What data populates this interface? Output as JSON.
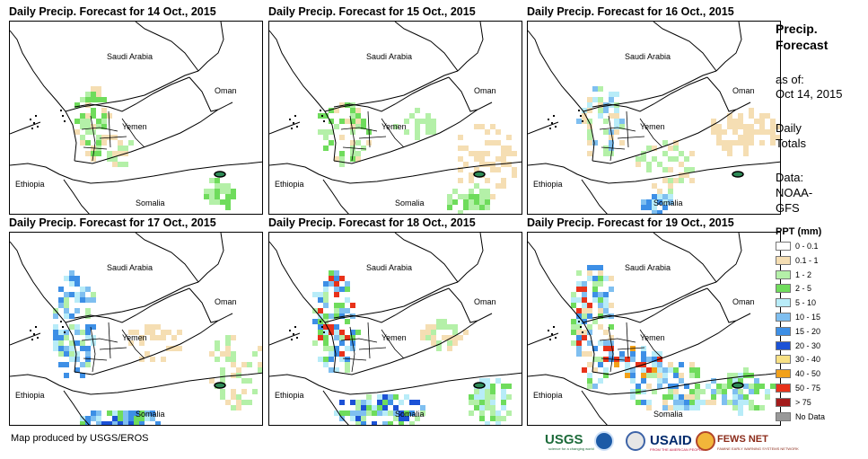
{
  "panels": [
    {
      "title": "Daily Precip. Forecast for 14 Oct., 2015"
    },
    {
      "title": "Daily Precip. Forecast for 15 Oct., 2015"
    },
    {
      "title": "Daily Precip. Forecast for 16 Oct., 2015"
    },
    {
      "title": "Daily Precip. Forecast for 17 Oct., 2015"
    },
    {
      "title": "Daily Precip. Forecast for 18 Oct., 2015"
    },
    {
      "title": "Daily Precip. Forecast for 19 Oct., 2015"
    }
  ],
  "map_labels": {
    "saudi_arabia": "Saudi Arabia",
    "oman": "Oman",
    "yemen": "Yemen",
    "ethiopia": "Ethiopia",
    "somalia": "Somalia"
  },
  "side_info": {
    "title_line1": "Precip.",
    "title_line2": "Forecast",
    "as_of_label": "as of:",
    "as_of_date": "Oct 14, 2015",
    "totals_line1": "Daily",
    "totals_line2": "Totals",
    "data_label": "Data:",
    "data_source_line1": "NOAA-",
    "data_source_line2": "GFS"
  },
  "legend": {
    "title": "PPT (mm)",
    "items": [
      {
        "label": "0 - 0.1",
        "color": "#ffffff"
      },
      {
        "label": "0.1 - 1",
        "color": "#f5deb3"
      },
      {
        "label": "1 - 2",
        "color": "#b4f0a8"
      },
      {
        "label": "2 - 5",
        "color": "#6fdc5c"
      },
      {
        "label": "5 - 10",
        "color": "#b8ecf8"
      },
      {
        "label": "10 - 15",
        "color": "#7fbff0"
      },
      {
        "label": "15 - 20",
        "color": "#3d8fe6"
      },
      {
        "label": "20 - 30",
        "color": "#1c52d6"
      },
      {
        "label": "30 - 40",
        "color": "#f8e184"
      },
      {
        "label": "40 - 50",
        "color": "#f2a11a"
      },
      {
        "label": "50 - 75",
        "color": "#e8321a"
      },
      {
        "label": "> 75",
        "color": "#a41c1c"
      },
      {
        "label": "No Data",
        "color": "#999999"
      }
    ]
  },
  "credit": "Map produced by USGS/EROS",
  "logos": {
    "usgs": "USGS",
    "usgs_tagline": "science for a changing world",
    "usaid": "USAID",
    "usaid_tagline": "FROM THE AMERICAN PEOPLE",
    "fews": "FEWS NET",
    "fews_tagline": "FAMINE EARLY WARNING SYSTEMS NETWORK"
  }
}
